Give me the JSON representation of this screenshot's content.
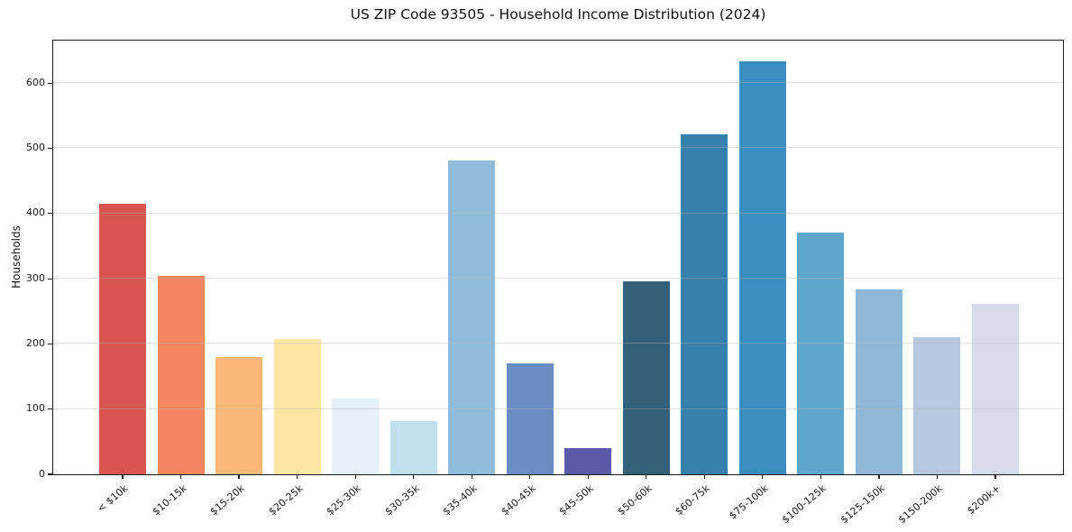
{
  "chart_data": {
    "type": "bar",
    "title": "US ZIP Code 93505 - Household Income Distribution (2024)",
    "xlabel": "",
    "ylabel": "Households",
    "categories": [
      "< $10k",
      "$10-15k",
      "$15-20k",
      "$20-25k",
      "$25-30k",
      "$30-35k",
      "$35-40k",
      "$40-45k",
      "$45-50k",
      "$50-60k",
      "$60-75k",
      "$75-100k",
      "$100-125k",
      "$125-150k",
      "$150-200k",
      "$200k+"
    ],
    "values": [
      415,
      304,
      180,
      207,
      116,
      82,
      482,
      170,
      40,
      296,
      521,
      634,
      370,
      283,
      210,
      261
    ],
    "bar_colors": [
      "#d95550",
      "#f4875f",
      "#fbb878",
      "#fde6a4",
      "#e4f1f7",
      "#bfe0ed",
      "#92bcdb",
      "#6b8dc3",
      "#5a5aa8",
      "#34607a",
      "#3680ab",
      "#3a8ec0",
      "#5ea6cc",
      "#91b8d8",
      "#b6c9e0",
      "#d7dae8"
    ],
    "yticks": [
      0,
      100,
      200,
      300,
      400,
      500,
      600
    ],
    "ylim": [
      0,
      668
    ],
    "grid": "horizontal",
    "legend": "none",
    "background_color": "#ffffff",
    "spine_color": "#1c1c1c"
  }
}
